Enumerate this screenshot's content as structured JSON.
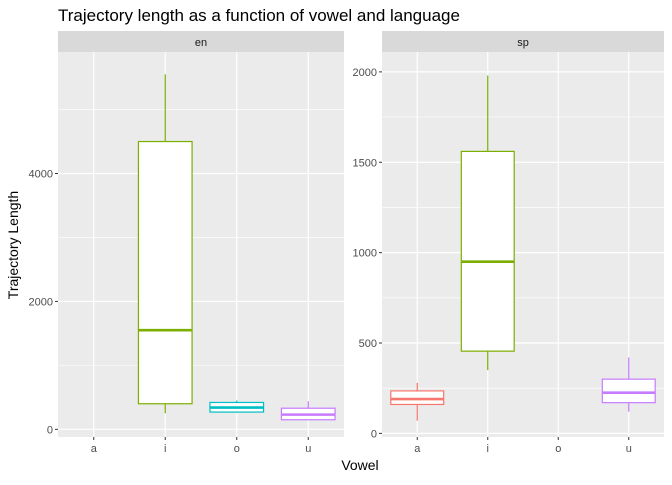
{
  "chart_data": {
    "type": "boxplot",
    "title": "Trajectory length as a function of vowel and language",
    "xlabel": "Vowel",
    "ylabel": "Trajectory Length",
    "categories": [
      "a",
      "i",
      "o",
      "u"
    ],
    "category_colors": {
      "a": "#F8766D",
      "i": "#7CAE00",
      "o": "#00BFC4",
      "u": "#C77CFF"
    },
    "panel_background": "#EBEBEB",
    "grid_color": "#FFFFFF",
    "strip_background": "#D9D9D9",
    "grid": true,
    "facets": [
      {
        "label": "en",
        "ylim": [
          -120,
          5900
        ],
        "yticks": [
          0,
          2000,
          4000
        ],
        "ytick_labels": [
          "0",
          "2000",
          "4000"
        ],
        "boxes": [
          {
            "category": "i",
            "min": 250,
            "q1": 400,
            "median": 1550,
            "q3": 4500,
            "max": 5550
          },
          {
            "category": "o",
            "min": 260,
            "q1": 270,
            "median": 340,
            "q3": 420,
            "max": 450
          },
          {
            "category": "u",
            "min": 150,
            "q1": 150,
            "median": 230,
            "q3": 330,
            "max": 440
          }
        ]
      },
      {
        "label": "sp",
        "ylim": [
          -20,
          2110
        ],
        "yticks": [
          0,
          500,
          1000,
          1500,
          2000
        ],
        "ytick_labels": [
          "0",
          "500",
          "1000",
          "1500",
          "2000"
        ],
        "boxes": [
          {
            "category": "a",
            "min": 70,
            "q1": 160,
            "median": 190,
            "q3": 235,
            "max": 280
          },
          {
            "category": "i",
            "min": 350,
            "q1": 455,
            "median": 950,
            "q3": 1560,
            "max": 1980
          },
          {
            "category": "u",
            "min": 120,
            "q1": 170,
            "median": 225,
            "q3": 300,
            "max": 420
          }
        ]
      }
    ]
  }
}
